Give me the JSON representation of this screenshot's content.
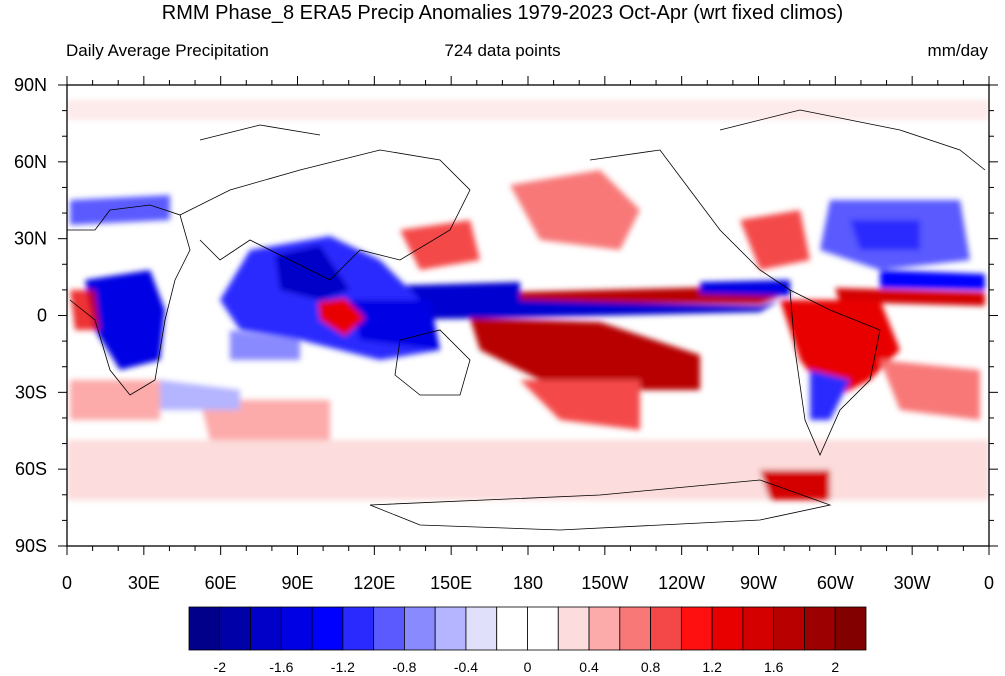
{
  "title": "RMM Phase_8 ERA5 Precip Anomalies 1979-2023 Oct-Apr (wrt fixed climos)",
  "subtitle_left": "Daily Average Precipitation",
  "subtitle_center": "724 data points",
  "subtitle_right": "mm/day",
  "lat_labels": [
    "90N",
    "60N",
    "30N",
    "0",
    "30S",
    "60S",
    "90S"
  ],
  "lon_labels": [
    "0",
    "30E",
    "60E",
    "90E",
    "120E",
    "150E",
    "180",
    "150W",
    "120W",
    "90W",
    "60W",
    "30W",
    "0"
  ],
  "colorbar": {
    "colors": [
      "#00008b",
      "#0000a8",
      "#0000c8",
      "#0000e4",
      "#0000ff",
      "#2a2aff",
      "#5a5aff",
      "#8a8aff",
      "#b4b4ff",
      "#e0e0fa",
      "#ffffff",
      "#ffffff",
      "#fcdcdc",
      "#fcaaaa",
      "#f87878",
      "#f44848",
      "#ff1010",
      "#e80000",
      "#d40000",
      "#b80000",
      "#9c0000",
      "#820000"
    ],
    "labels": [
      "-2",
      "-1.6",
      "-1.2",
      "-0.8",
      "-0.4",
      "0",
      "0.4",
      "0.8",
      "1.2",
      "1.6",
      "2"
    ]
  },
  "colors": {
    "strong_negative": "#0000c8",
    "weak_negative": "#b4b4ff",
    "weak_positive": "#fcdcdc",
    "strong_positive": "#d40000"
  }
}
